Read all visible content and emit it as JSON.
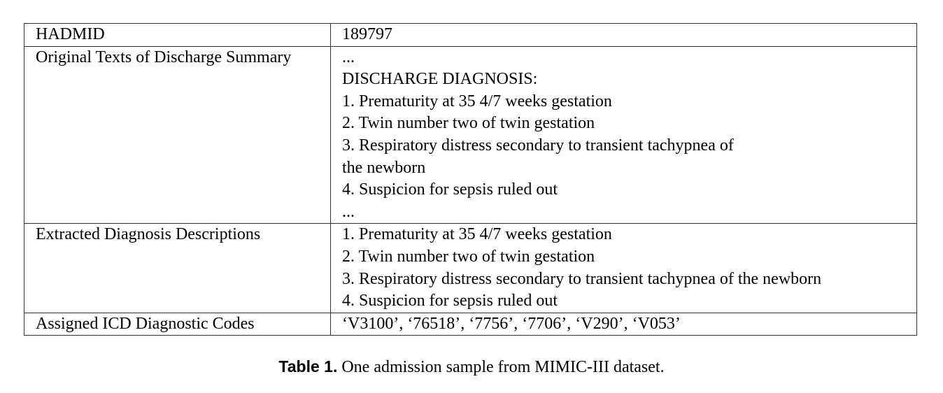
{
  "table": {
    "rows": [
      {
        "label": "HADMID",
        "lines": [
          "189797"
        ]
      },
      {
        "label": "Original Texts of Discharge Summary",
        "lines": [
          "...",
          "DISCHARGE DIAGNOSIS:",
          "1. Prematurity at 35 4/7 weeks gestation",
          "2. Twin number two of twin gestation",
          "3. Respiratory distress secondary to transient tachypnea of",
          "the newborn",
          "4. Suspicion for sepsis ruled out",
          "..."
        ]
      },
      {
        "label": "Extracted Diagnosis Descriptions",
        "lines": [
          "1. Prematurity at 35 4/7 weeks gestation",
          "2. Twin number two of twin gestation",
          "3. Respiratory distress secondary to transient tachypnea of the newborn",
          "4. Suspicion for sepsis ruled out"
        ]
      },
      {
        "label": "Assigned ICD Diagnostic Codes",
        "lines": [
          "‘V3100’, ‘76518’, ‘7756’, ‘7706’, ‘V290’, ‘V053’"
        ]
      }
    ]
  },
  "caption": {
    "label": "Table 1.",
    "text": "One admission sample from MIMIC-III dataset."
  }
}
